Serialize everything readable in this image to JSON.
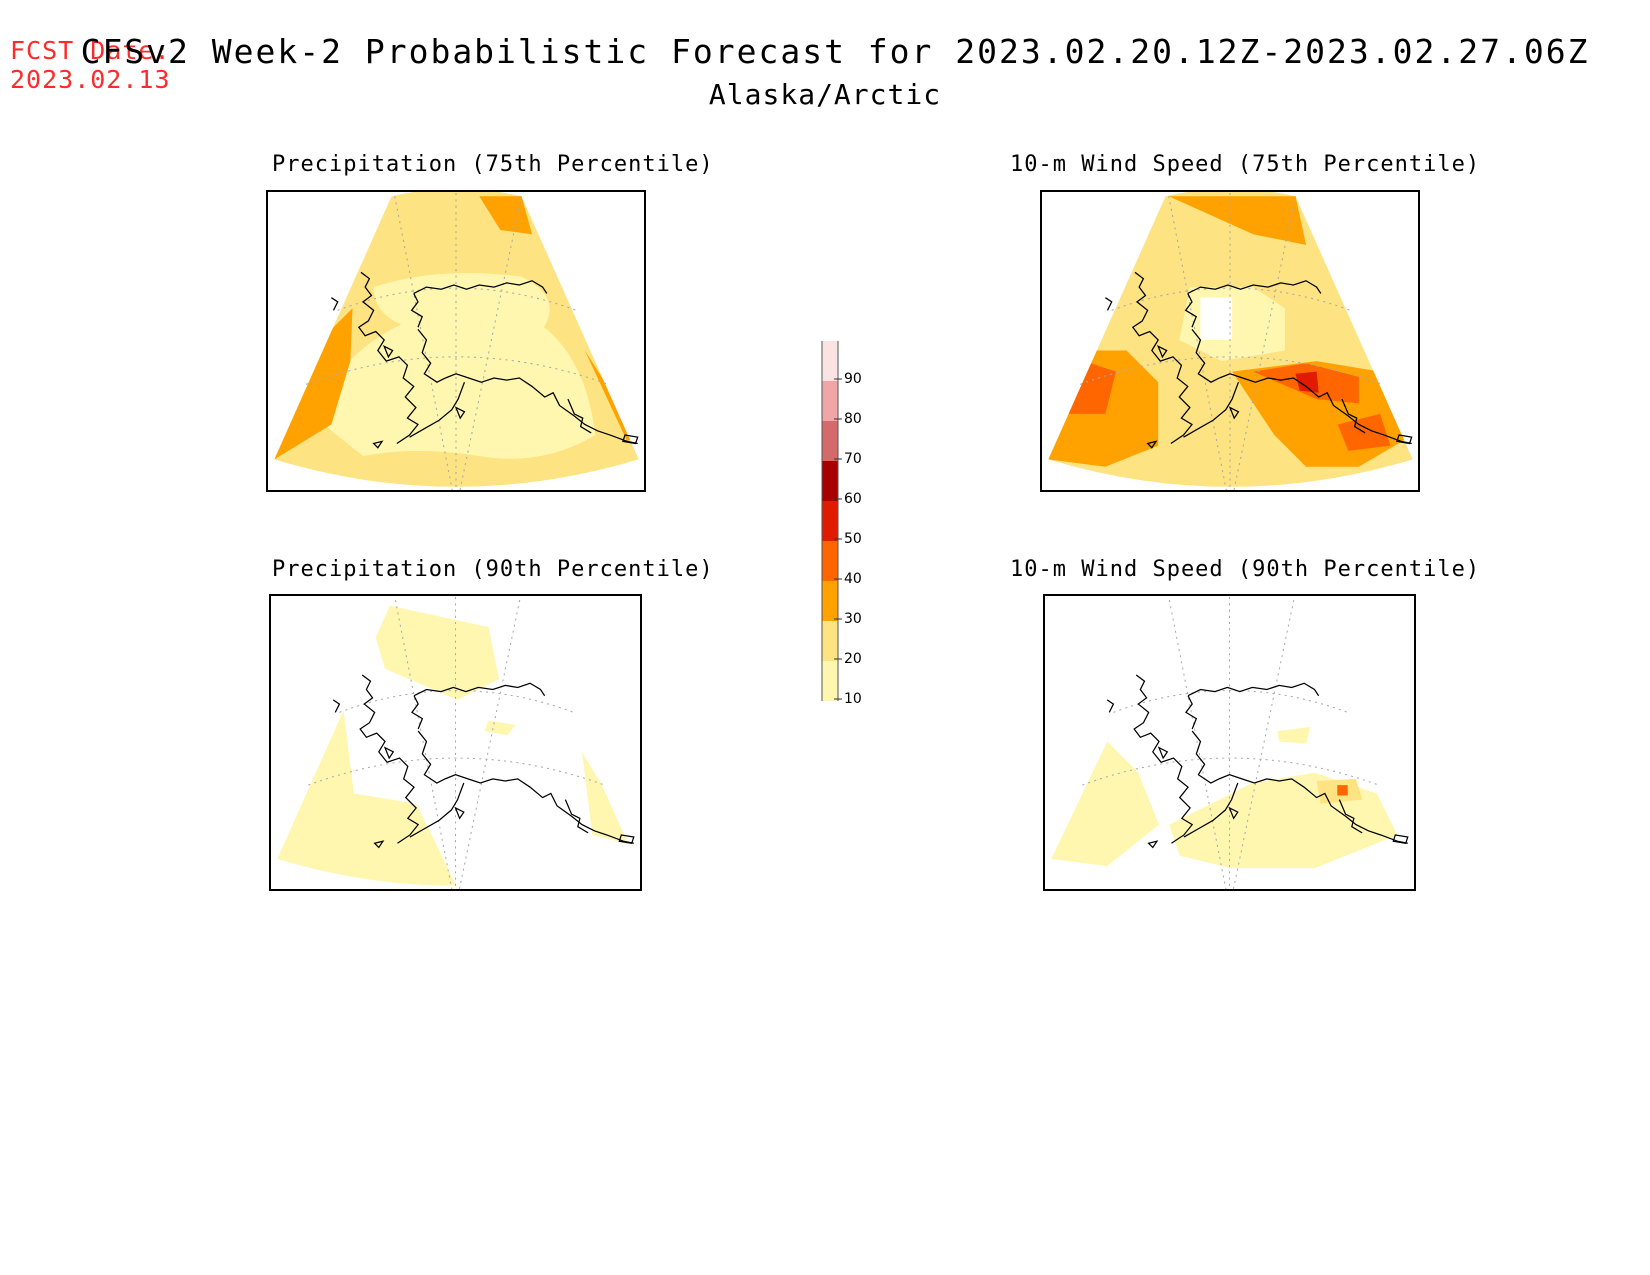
{
  "header": {
    "fcst_label": "FCST Date:",
    "fcst_date": "2023.02.13",
    "title": "CFSv2 Week-2 Probabilistic Forecast for 2023.02.20.12Z-2023.02.27.06Z",
    "subtitle": "Alaska/Arctic"
  },
  "panels": [
    {
      "id": "precip75",
      "title": "Precipitation (75th Percentile)"
    },
    {
      "id": "precip90",
      "title": "Precipitation (90th Percentile)"
    },
    {
      "id": "wind75",
      "title": "10-m Wind Speed (75th Percentile)"
    },
    {
      "id": "wind90",
      "title": "10-m Wind Speed (90th Percentile)"
    }
  ],
  "colorbar": {
    "labels": [
      "10",
      "20",
      "30",
      "40",
      "50",
      "60",
      "70",
      "80",
      "90"
    ],
    "colors": [
      "#fff7b0",
      "#fde381",
      "#ffa200",
      "#ff6600",
      "#e01b00",
      "#a80000",
      "#d46a6a",
      "#f0a6a6",
      "#fbe3e3"
    ]
  }
}
